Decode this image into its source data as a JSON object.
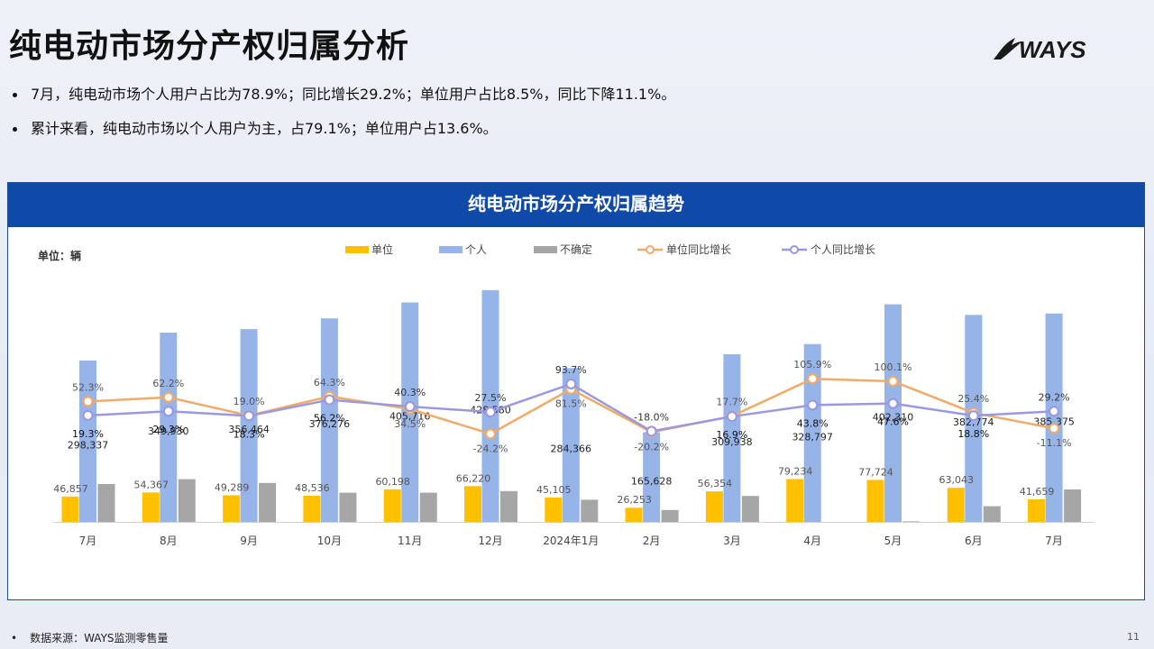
{
  "page": {
    "title": "纯电动市场分产权归属分析",
    "logo_text": "WAYS",
    "bullets": [
      "7月，纯电动市场个人用户占比为78.9%；同比增长29.2%；单位用户占比8.5%，同比下降11.1%。",
      "累计来看，纯电动市场以个人用户为主，占79.1%；单位用户占13.6%。"
    ],
    "footer_bullet": "•",
    "source": "数据来源：WAYS监测零售量",
    "page_number": "11"
  },
  "chart_data": {
    "type": "bar",
    "title": "纯电动市场分产权归属趋势",
    "unit_label": "单位：辆",
    "categories": [
      "7月",
      "8月",
      "9月",
      "10月",
      "11月",
      "12月",
      "2024年1月",
      "2月",
      "3月",
      "4月",
      "5月",
      "6月",
      "7月"
    ],
    "bar_ylim": [
      0,
      450000
    ],
    "line_ylim": [
      -80,
      200
    ],
    "legend_position": "top",
    "grid": false,
    "series": [
      {
        "name": "单位",
        "kind": "bar",
        "color": "#ffc000",
        "values": [
          46857,
          54367,
          49289,
          48536,
          60198,
          66220,
          45105,
          26253,
          56354,
          79234,
          77724,
          63043,
          41659
        ],
        "labels": [
          "46,857",
          "54,367",
          "49,289",
          "48,536",
          "60,198",
          "66,220",
          "45,105",
          "26,253",
          "56,354",
          "79,234",
          "77,724",
          "63,043",
          "41,659"
        ]
      },
      {
        "name": "个人",
        "kind": "bar",
        "color": "#96b4e8",
        "values": [
          298337,
          349930,
          356464,
          376276,
          405716,
          428580,
          284366,
          165628,
          309938,
          328797,
          402310,
          382774,
          385375
        ],
        "labels": [
          "298,337",
          "349,930",
          "356,464",
          "376,276",
          "405,716",
          "428,580",
          "284,366",
          "165,628",
          "309,938",
          "328,797",
          "402,310",
          "382,774",
          "385,375"
        ]
      },
      {
        "name": "不确定",
        "kind": "bar",
        "color": "#a6a6a6",
        "values": [
          70000,
          79000,
          72000,
          54000,
          54000,
          57000,
          41000,
          22000,
          48000,
          0,
          1000,
          29000,
          60000
        ],
        "labels": []
      },
      {
        "name": "单位同比增长",
        "kind": "line",
        "color": "#f0ab68",
        "values": [
          52.3,
          62.2,
          19.0,
          64.3,
          34.5,
          -24.2,
          81.5,
          -20.2,
          17.7,
          105.9,
          100.1,
          25.4,
          -11.1
        ],
        "labels": [
          "52.3%",
          "62.2%",
          "19.0%",
          "64.3%",
          "34.5%",
          "-24.2%",
          "81.5%",
          "-20.2%",
          "17.7%",
          "105.9%",
          "100.1%",
          "25.4%",
          "-11.1%"
        ]
      },
      {
        "name": "个人同比增长",
        "kind": "line",
        "color": "#9b98e0",
        "values": [
          19.3,
          29.3,
          18.3,
          56.2,
          40.3,
          27.5,
          93.7,
          -18.0,
          16.9,
          43.8,
          47.6,
          18.8,
          29.2
        ],
        "labels": [
          "19.3%",
          "29.3%",
          "18.3%",
          "56.2%",
          "40.3%",
          "27.5%",
          "93.7%",
          "-18.0%",
          "16.9%",
          "43.8%",
          "47.6%",
          "18.8%",
          "29.2%"
        ]
      }
    ]
  }
}
